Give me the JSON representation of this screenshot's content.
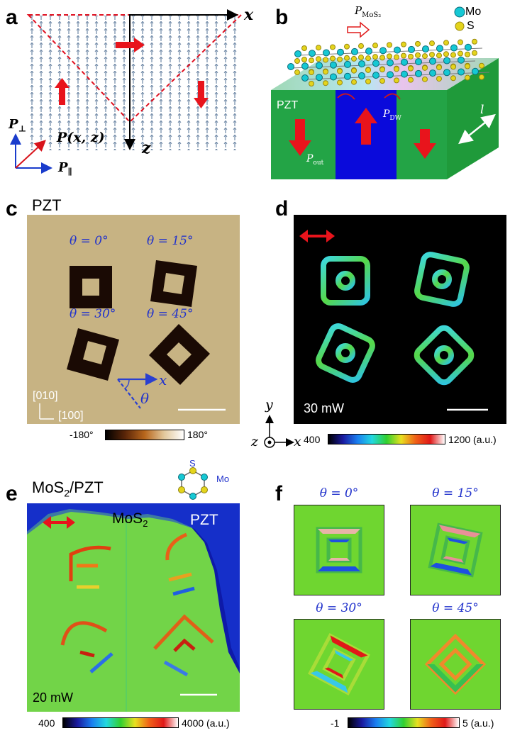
{
  "panel_a": {
    "label": "a",
    "x_axis": "x",
    "z_axis": "z",
    "p_perp": "P",
    "p_perp_sub": "⊥",
    "p_xz": "P(x, z)",
    "p_par": "P",
    "p_par_sub": "∥"
  },
  "panel_b": {
    "label": "b",
    "p_mos2": "P",
    "p_mos2_sub": "MoS₂",
    "legend_mo": "Mo",
    "legend_s": "S",
    "pzt": "PZT",
    "p_dw": "P",
    "p_dw_sub": "DW",
    "p_out": "P",
    "p_out_sub": "out",
    "length": "l"
  },
  "panel_c": {
    "label": "c",
    "title": "PZT",
    "theta0": "θ = 0°",
    "theta15": "θ = 15°",
    "theta30": "θ = 30°",
    "theta45": "θ = 45°",
    "dir_y": "[010]",
    "dir_x": "[100]",
    "axis_x": "x",
    "axis_theta": "θ",
    "cbar_min": "-180°",
    "cbar_max": "180°"
  },
  "panel_d": {
    "label": "d",
    "power": "30 mW",
    "axis_y": "y",
    "axis_z": "z",
    "axis_x": "x",
    "cbar_min": "400",
    "cbar_max": "1200 (a.u.)"
  },
  "panel_e": {
    "label": "e",
    "title": "MoS",
    "title_sub": "2",
    "title_rest": "/PZT",
    "region_mos2": "MoS",
    "region_mos2_sub": "2",
    "region_pzt": "PZT",
    "power": "20 mW",
    "mol_s": "S",
    "mol_mo": "Mo",
    "cbar_min": "400",
    "cbar_max": "4000 (a.u.)"
  },
  "panel_f": {
    "label": "f",
    "theta0": "θ = 0°",
    "theta15": "θ = 15°",
    "theta30": "θ = 30°",
    "theta45": "θ = 45°",
    "cbar_min": "-1",
    "cbar_max": "5 (a.u.)"
  }
}
